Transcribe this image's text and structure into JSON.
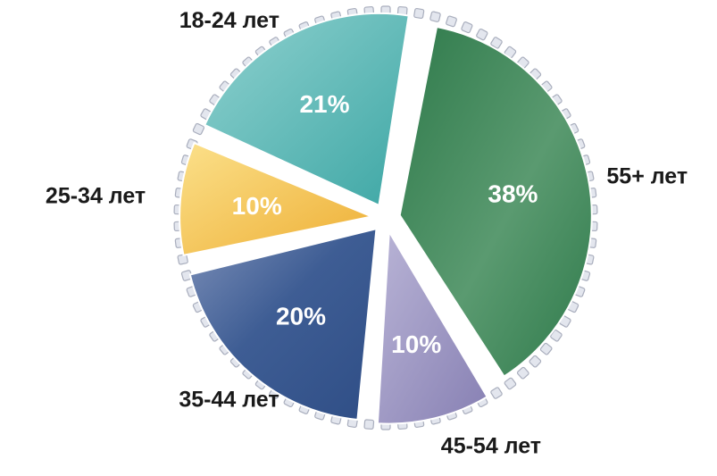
{
  "chart_data": {
    "type": "pie",
    "categories": [
      "55+ лет",
      "45-54 лет",
      "35-44 лет",
      "25-34 лет",
      "18-24 лет"
    ],
    "values": [
      38,
      10,
      20,
      10,
      21
    ],
    "value_labels": [
      "38%",
      "10%",
      "20%",
      "10%",
      "21%"
    ],
    "colors": [
      "#3f8a5c",
      "#9d97c3",
      "#3d5e96",
      "#f0bf4c",
      "#53b7b5"
    ],
    "title": "",
    "legend": "none"
  }
}
